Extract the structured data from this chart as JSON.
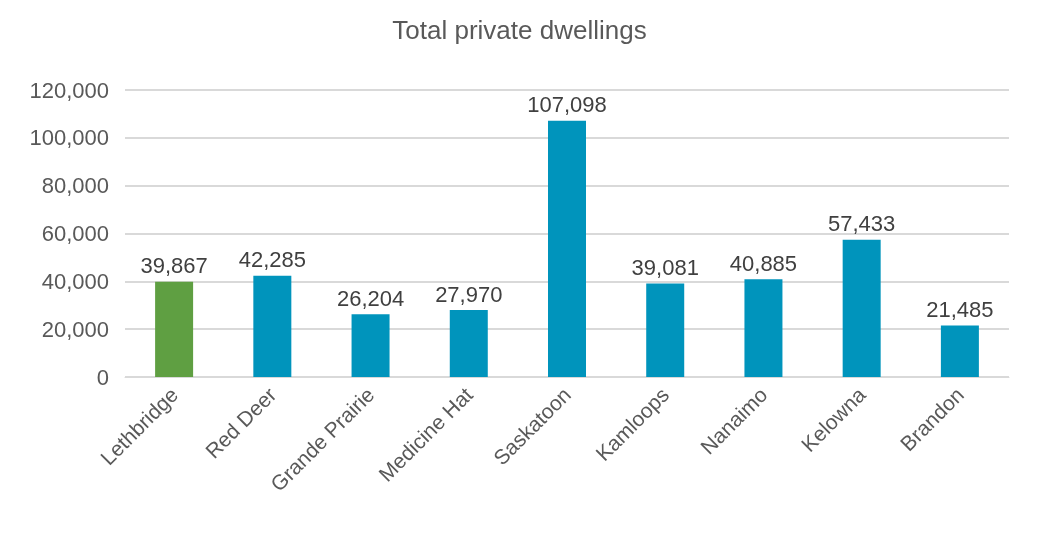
{
  "chart_data": {
    "type": "bar",
    "title": "Total private dwellings",
    "categories": [
      "Lethbridge",
      "Red Deer",
      "Grande Prairie",
      "Medicine Hat",
      "Saskatoon",
      "Kamloops",
      "Nanaimo",
      "Kelowna",
      "Brandon"
    ],
    "values": [
      39867,
      42285,
      26204,
      27970,
      107098,
      39081,
      40885,
      57433,
      21485
    ],
    "value_labels": [
      "39,867",
      "42,285",
      "26,204",
      "27,970",
      "107,098",
      "39,081",
      "40,885",
      "57,433",
      "21,485"
    ],
    "colors": [
      "#5f9f42",
      "#0094bc",
      "#0094bc",
      "#0094bc",
      "#0094bc",
      "#0094bc",
      "#0094bc",
      "#0094bc",
      "#0094bc"
    ],
    "ylim": [
      0,
      120000
    ],
    "yticks": [
      0,
      {
        "value": 20000,
        "label": "20,000"
      },
      {
        "value": 40000,
        "label": "40,000"
      },
      {
        "value": 60000,
        "label": "60,000"
      },
      {
        "value": 80000,
        "label": "80,000"
      },
      {
        "value": 100000,
        "label": "100,000"
      },
      {
        "value": 120000,
        "label": "120,000"
      }
    ],
    "grid": "y"
  }
}
